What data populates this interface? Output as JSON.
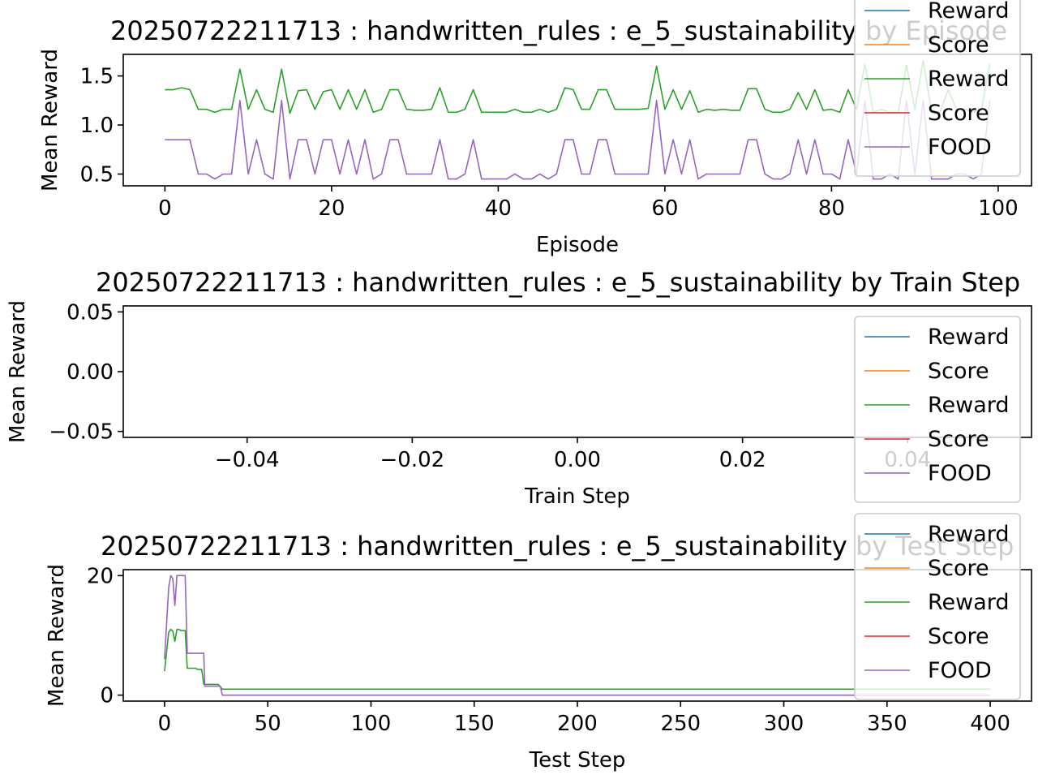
{
  "chart_data": [
    {
      "type": "line",
      "title": "20250722211713 : handwritten_rules : e_5_sustainability by Episode",
      "xlabel": "Episode",
      "ylabel": "Mean Reward",
      "xlim": [
        -5,
        104
      ],
      "ylim": [
        0.38,
        1.72
      ],
      "xticks": [
        0,
        20,
        40,
        60,
        80,
        100
      ],
      "xtick_labels": [
        "0",
        "20",
        "40",
        "60",
        "80",
        "100"
      ],
      "yticks": [
        0.5,
        1.0,
        1.5
      ],
      "ytick_labels": [
        "0.5",
        "1.0",
        "1.5"
      ],
      "legend_position": "top-right",
      "legend": [
        "Reward",
        "Score",
        "Reward",
        "Score",
        "FOOD"
      ],
      "series": [
        {
          "name": "Reward",
          "color": "#1f77b4",
          "values": []
        },
        {
          "name": "Score",
          "color": "#ff7f0e",
          "values": []
        },
        {
          "name": "Reward",
          "color": "#2ca02c",
          "values": [
            1.36,
            1.36,
            1.38,
            1.36,
            1.16,
            1.16,
            1.13,
            1.16,
            1.16,
            1.57,
            1.16,
            1.36,
            1.16,
            1.13,
            1.57,
            1.12,
            1.35,
            1.36,
            1.16,
            1.34,
            1.36,
            1.16,
            1.36,
            1.16,
            1.36,
            1.13,
            1.16,
            1.36,
            1.36,
            1.16,
            1.15,
            1.15,
            1.16,
            1.38,
            1.13,
            1.13,
            1.16,
            1.36,
            1.13,
            1.13,
            1.13,
            1.13,
            1.16,
            1.13,
            1.13,
            1.16,
            1.13,
            1.16,
            1.38,
            1.36,
            1.16,
            1.16,
            1.36,
            1.36,
            1.16,
            1.16,
            1.16,
            1.16,
            1.17,
            1.6,
            1.16,
            1.36,
            1.16,
            1.35,
            1.13,
            1.16,
            1.15,
            1.16,
            1.15,
            1.15,
            1.37,
            1.37,
            1.16,
            1.13,
            1.13,
            1.16,
            1.33,
            1.16,
            1.36,
            1.15,
            1.16,
            1.13,
            1.36,
            1.16,
            1.62,
            1.13,
            1.16,
            1.13,
            1.13,
            1.61,
            1.16,
            1.66,
            1.13,
            1.13,
            1.36,
            1.16,
            1.16,
            1.13,
            1.16,
            1.62
          ]
        },
        {
          "name": "Score",
          "color": "#d62728",
          "values": []
        },
        {
          "name": "FOOD",
          "color": "#9467bd",
          "values": [
            0.85,
            0.85,
            0.85,
            0.85,
            0.5,
            0.5,
            0.45,
            0.5,
            0.5,
            1.25,
            0.5,
            0.85,
            0.5,
            0.45,
            1.25,
            0.45,
            0.85,
            0.85,
            0.5,
            0.85,
            0.85,
            0.5,
            0.85,
            0.5,
            0.85,
            0.45,
            0.5,
            0.85,
            0.85,
            0.5,
            0.5,
            0.5,
            0.5,
            0.85,
            0.45,
            0.45,
            0.5,
            0.85,
            0.45,
            0.45,
            0.45,
            0.45,
            0.5,
            0.45,
            0.45,
            0.5,
            0.45,
            0.5,
            0.85,
            0.85,
            0.5,
            0.5,
            0.85,
            0.85,
            0.5,
            0.5,
            0.5,
            0.5,
            0.5,
            1.25,
            0.5,
            0.85,
            0.5,
            0.85,
            0.45,
            0.5,
            0.5,
            0.5,
            0.5,
            0.5,
            0.85,
            0.85,
            0.5,
            0.45,
            0.45,
            0.5,
            0.85,
            0.5,
            0.85,
            0.5,
            0.5,
            0.45,
            0.85,
            0.5,
            1.25,
            0.45,
            0.45,
            0.5,
            0.45,
            1.25,
            0.5,
            1.25,
            0.45,
            0.45,
            0.45,
            0.5,
            0.5,
            0.45,
            0.5,
            1.25
          ]
        }
      ]
    },
    {
      "type": "line",
      "title": "20250722211713 : handwritten_rules : e_5_sustainability by Train Step",
      "xlabel": "Train Step",
      "ylabel": "Mean Reward",
      "xlim": [
        -0.055,
        0.055
      ],
      "ylim": [
        -0.055,
        0.055
      ],
      "xticks": [
        -0.04,
        -0.02,
        0.0,
        0.02,
        0.04
      ],
      "xtick_labels": [
        "−0.04",
        "−0.02",
        "0.00",
        "0.02",
        "0.04"
      ],
      "yticks": [
        0.05,
        0.0,
        -0.05
      ],
      "ytick_labels": [
        "0.05",
        "0.00",
        "−0.05"
      ],
      "legend_position": "right",
      "legend": [
        "Reward",
        "Score",
        "Reward",
        "Score",
        "FOOD"
      ],
      "series": [
        {
          "name": "Reward",
          "color": "#1f77b4",
          "values": []
        },
        {
          "name": "Score",
          "color": "#ff7f0e",
          "values": []
        },
        {
          "name": "Reward",
          "color": "#2ca02c",
          "values": []
        },
        {
          "name": "Score",
          "color": "#d62728",
          "values": []
        },
        {
          "name": "FOOD",
          "color": "#9467bd",
          "values": []
        }
      ]
    },
    {
      "type": "line",
      "title": "20250722211713 : handwritten_rules : e_5_sustainability by Test Step",
      "xlabel": "Test Step",
      "ylabel": "Mean Reward",
      "xlim": [
        -20,
        420
      ],
      "ylim": [
        -1,
        21
      ],
      "xticks": [
        0,
        50,
        100,
        150,
        200,
        250,
        300,
        350,
        400
      ],
      "xtick_labels": [
        "0",
        "50",
        "100",
        "150",
        "200",
        "250",
        "300",
        "350",
        "400"
      ],
      "yticks": [
        20,
        0
      ],
      "ytick_labels": [
        "20",
        "0"
      ],
      "legend_position": "top-right",
      "legend": [
        "Reward",
        "Score",
        "Reward",
        "Score",
        "FOOD"
      ],
      "series": [
        {
          "name": "Reward",
          "color": "#1f77b4",
          "points": []
        },
        {
          "name": "Score",
          "color": "#ff7f0e",
          "points": []
        },
        {
          "name": "Reward",
          "color": "#2ca02c",
          "points": [
            [
              0,
              4
            ],
            [
              2,
              10.5
            ],
            [
              3,
              11
            ],
            [
              4,
              10.7
            ],
            [
              5,
              9
            ],
            [
              6,
              11
            ],
            [
              7,
              11
            ],
            [
              8,
              10.8
            ],
            [
              9,
              10.8
            ],
            [
              10,
              10.8
            ],
            [
              11,
              4.5
            ],
            [
              12,
              4.5
            ],
            [
              15,
              4.5
            ],
            [
              16,
              4.3
            ],
            [
              18,
              4.3
            ],
            [
              19,
              1.8
            ],
            [
              26,
              1.8
            ],
            [
              27,
              1.4
            ],
            [
              28,
              1.0
            ],
            [
              400,
              1.0
            ]
          ]
        },
        {
          "name": "Score",
          "color": "#d62728",
          "points": []
        },
        {
          "name": "FOOD",
          "color": "#9467bd",
          "points": [
            [
              0,
              6
            ],
            [
              2,
              18
            ],
            [
              3,
              20
            ],
            [
              4,
              19.5
            ],
            [
              5,
              15
            ],
            [
              6,
              20
            ],
            [
              7,
              20
            ],
            [
              10,
              20
            ],
            [
              11,
              7
            ],
            [
              19,
              7
            ],
            [
              19.5,
              1.5
            ],
            [
              27,
              1.5
            ],
            [
              28,
              0
            ],
            [
              400,
              0
            ]
          ]
        }
      ]
    }
  ]
}
